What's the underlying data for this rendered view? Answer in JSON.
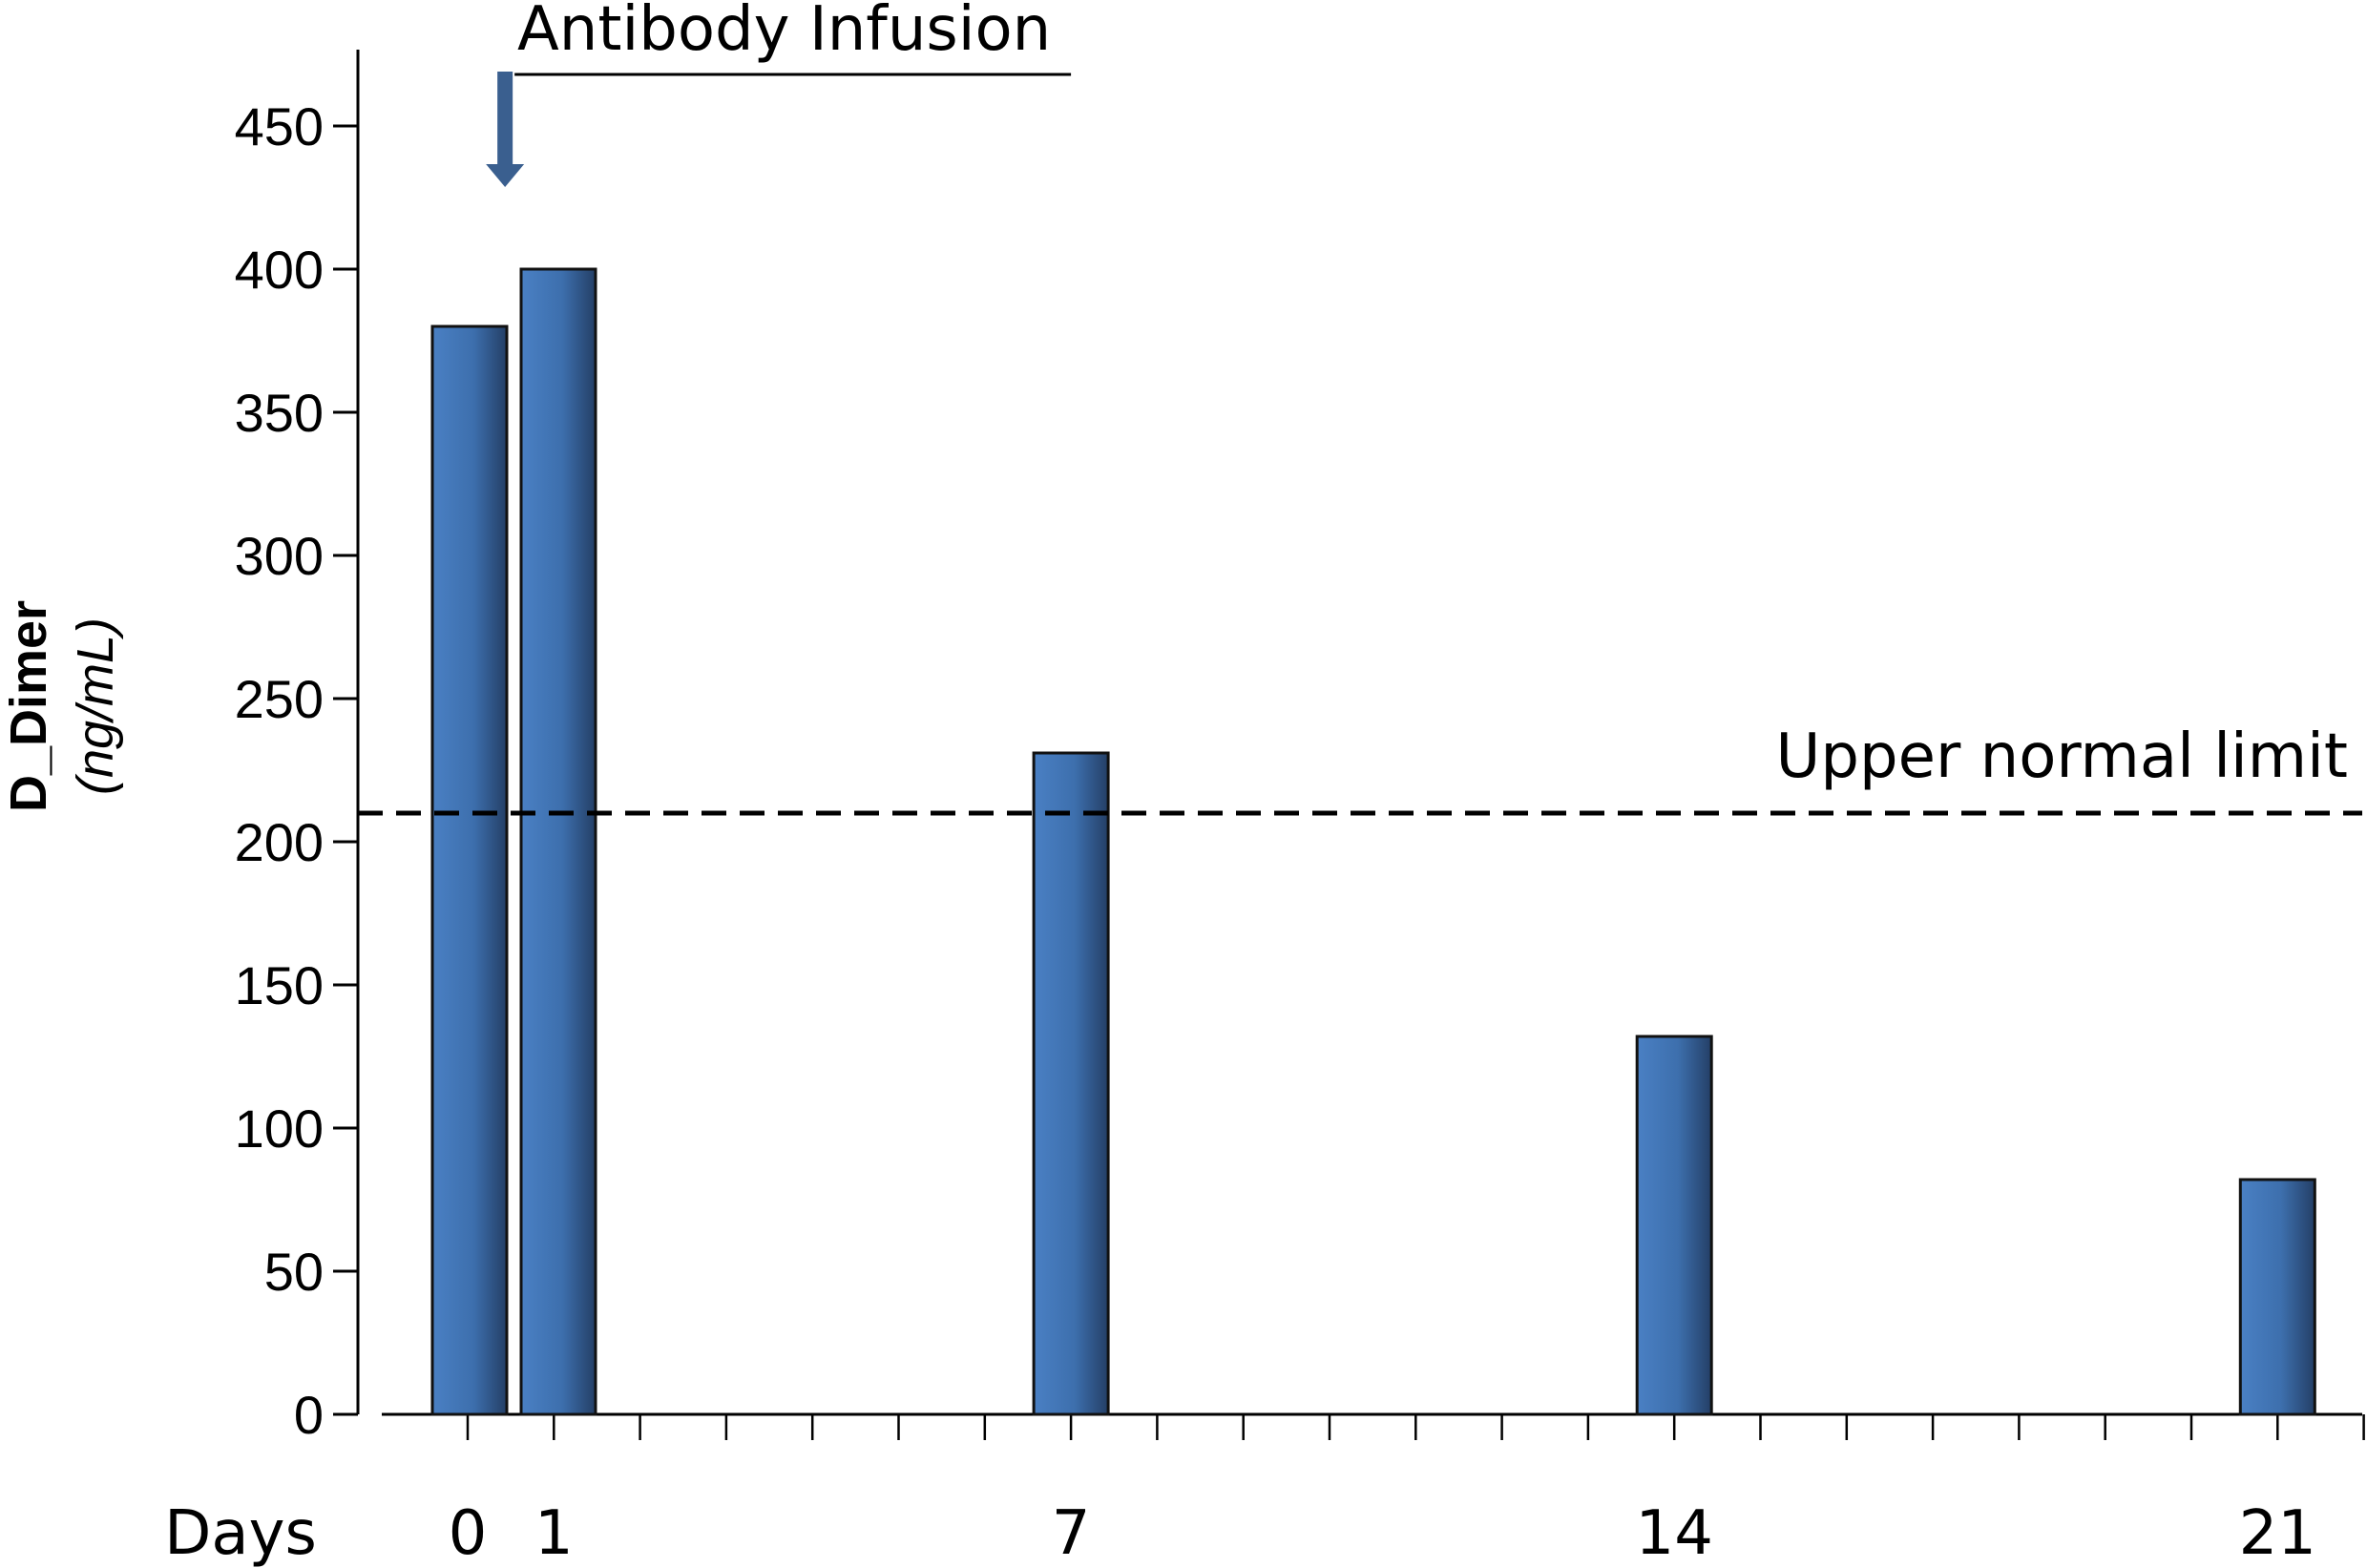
{
  "chart_data": {
    "type": "bar",
    "x": [
      0,
      1,
      7,
      14,
      21
    ],
    "values": [
      380,
      400,
      231,
      132,
      82
    ],
    "ylabel": "D_Dimer",
    "ylabel_unit": "(ng/mL)",
    "xlabel": "Days",
    "x_tick_labels": [
      "0",
      "1",
      "7",
      "14",
      "21"
    ],
    "y_ticks": [
      "0",
      "50",
      "100",
      "150",
      "200",
      "250",
      "300",
      "350",
      "400",
      "450"
    ],
    "ylim": [
      0,
      470
    ],
    "xlim": [
      -1,
      22
    ],
    "grid": false,
    "bar_color": "#3f74b5",
    "reference_line": {
      "label": "Upper normal limit",
      "value": 210,
      "style": "dashed"
    },
    "annotation": {
      "label": "Antibody Infusion",
      "arrow_at_day": 0.5,
      "bracket_to_day": 7
    }
  }
}
